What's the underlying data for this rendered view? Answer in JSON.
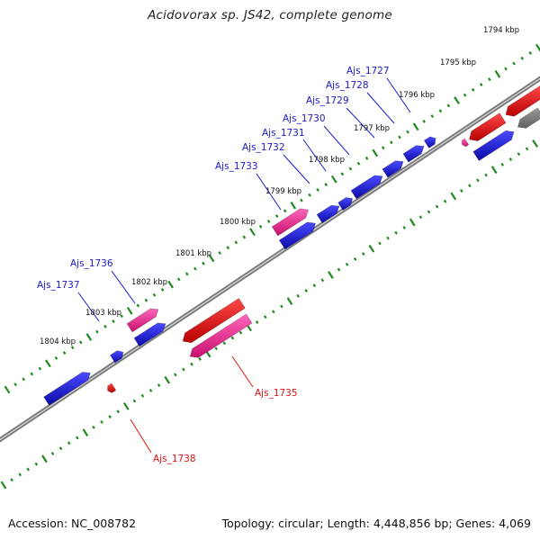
{
  "title": "Acidovorax sp. JS42, complete genome",
  "footer": {
    "accession": "Accession: NC_008782",
    "topology": "Topology: circular; Length: 4,448,856 bp; Genes: 4,069"
  },
  "colors": {
    "forward_cds": "#1515cc",
    "forward_other": "#e0207f",
    "reverse_cds": "#e01010",
    "reverse_other": "#ee3d9a",
    "backbone": "#888888",
    "tick": "#1e8a1e",
    "label_forward": "#1a1acc",
    "label_reverse": "#dd1111"
  },
  "kbp_labels": [
    "1794 kbp",
    "1795 kbp",
    "1796 kbp",
    "1797 kbp",
    "1798 kbp",
    "1799 kbp",
    "1800 kbp",
    "1801 kbp",
    "1802 kbp",
    "1803 kbp",
    "1804 kbp"
  ],
  "gene_labels_forward": [
    "Ajs_1727",
    "Ajs_1728",
    "Ajs_1729",
    "Ajs_1730",
    "Ajs_1731",
    "Ajs_1732",
    "Ajs_1733",
    "Ajs_1736",
    "Ajs_1737"
  ],
  "gene_labels_reverse": [
    "Ajs_1735",
    "Ajs_1738"
  ]
}
